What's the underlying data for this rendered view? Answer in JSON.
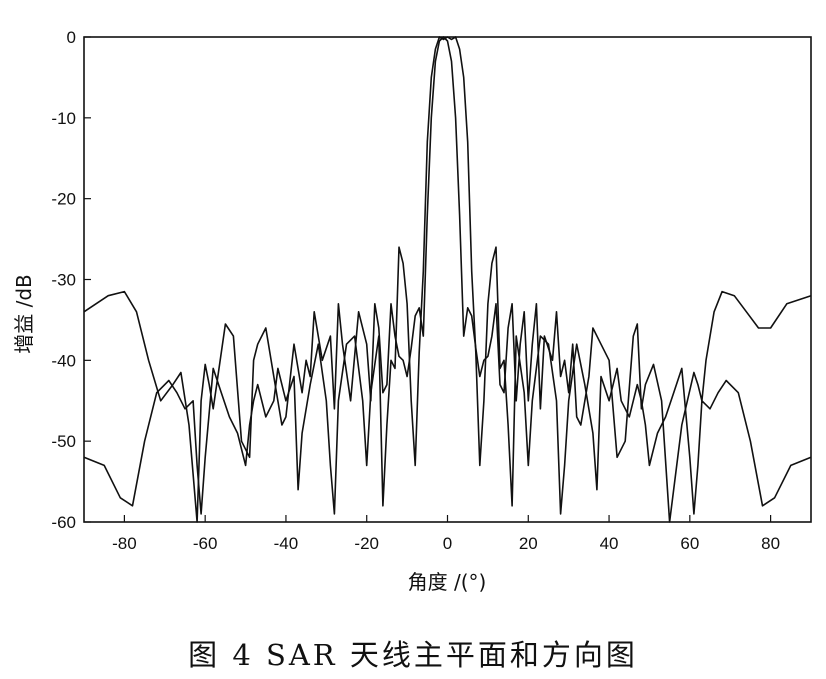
{
  "figure": {
    "caption": "图 4 SAR 天线主平面和方向图"
  },
  "chart_data": {
    "type": "line",
    "xlabel": "角度 /(°)",
    "ylabel": "增益 /dB",
    "xlim": [
      -90,
      90
    ],
    "ylim": [
      -60,
      0
    ],
    "xticks": [
      -80,
      -60,
      -40,
      -20,
      0,
      20,
      40,
      60,
      80
    ],
    "yticks": [
      0,
      -10,
      -20,
      -30,
      -40,
      -50,
      -60
    ],
    "grid": false,
    "series": [
      {
        "x": [
          -90,
          -84,
          -80,
          -77,
          -74,
          -71,
          -68,
          -66,
          -64,
          -62,
          -61,
          -60,
          -59,
          -58,
          -55,
          -53,
          -51,
          -49,
          -48,
          -47,
          -45,
          -43,
          -41,
          -40,
          -38,
          -36,
          -35,
          -34,
          -33,
          -31,
          -29,
          -28,
          -27,
          -26,
          -24,
          -22,
          -20,
          -19,
          -18,
          -17,
          -16,
          -15,
          -14,
          -13,
          -12,
          -11,
          -10,
          -9,
          -8,
          -7,
          -6,
          -5,
          -4,
          -3,
          -2,
          -1,
          0,
          1,
          2,
          3,
          4,
          5,
          6,
          7,
          8,
          9,
          10,
          11,
          12,
          13,
          14,
          15,
          16,
          17,
          18,
          19,
          20,
          21,
          22,
          23,
          24,
          26,
          27,
          28,
          29,
          30,
          31,
          32,
          33,
          35,
          36,
          38,
          40,
          42,
          44,
          46,
          47,
          48,
          49,
          51,
          53,
          55,
          58,
          61,
          62,
          63,
          64,
          66,
          68,
          71,
          74,
          77,
          80,
          84,
          90
        ],
        "values": [
          -34,
          -32,
          -31.5,
          -34,
          -40,
          -45,
          -43,
          -41.5,
          -48,
          -60,
          -45,
          -40.5,
          -43,
          -46,
          -35.5,
          -37,
          -50,
          -52,
          -40,
          -38,
          -36,
          -42,
          -48,
          -47,
          -38,
          -44,
          -40,
          -42,
          -34,
          -40,
          -37,
          -46,
          -33,
          -38,
          -45,
          -34,
          -38,
          -45,
          -33,
          -36,
          -44,
          -43,
          -33,
          -37,
          -39.5,
          -40,
          -42,
          -38.5,
          -34.5,
          -33.5,
          -37,
          -22,
          -10,
          -3,
          -0.5,
          0,
          -0.5,
          -3,
          -10,
          -22,
          -37,
          -33.5,
          -34.5,
          -38.5,
          -42,
          -40,
          -39.5,
          -37,
          -33,
          -43,
          -44,
          -36,
          -33,
          -45,
          -38,
          -34,
          -45,
          -38,
          -33,
          -46,
          -37,
          -40,
          -34,
          -42,
          -40,
          -44,
          -38,
          -47,
          -48,
          -42,
          -36,
          -38,
          -40,
          -52,
          -50,
          -37,
          -35.5,
          -46,
          -43,
          -40.5,
          -45,
          -60,
          -48,
          -41.5,
          -43,
          -45,
          -40,
          -34,
          -31.5,
          -32,
          -34,
          -36,
          -36,
          -33,
          -32
        ]
      },
      {
        "x": [
          -90,
          -85,
          -81,
          -78,
          -75,
          -72,
          -69,
          -67,
          -65,
          -63,
          -62,
          -61,
          -60,
          -58,
          -56,
          -54,
          -52,
          -50,
          -49,
          -48,
          -47,
          -45,
          -43,
          -42,
          -40,
          -38,
          -37,
          -36,
          -34,
          -32,
          -30,
          -29,
          -28,
          -27,
          -25,
          -23,
          -21,
          -20,
          -19,
          -17,
          -16,
          -15,
          -14,
          -13,
          -12,
          -11,
          -10,
          -9,
          -8,
          -7,
          -6,
          -5,
          -4,
          -3,
          -2,
          -1,
          0,
          1,
          2,
          3,
          4,
          5,
          6,
          7,
          8,
          9,
          10,
          11,
          12,
          13,
          14,
          15,
          16,
          17,
          19,
          20,
          21,
          23,
          25,
          27,
          28,
          29,
          30,
          32,
          34,
          36,
          37,
          38,
          40,
          42,
          43,
          45,
          47,
          48,
          49,
          50,
          52,
          54,
          56,
          58,
          60,
          61,
          62,
          63,
          65,
          67,
          69,
          72,
          75,
          78,
          81,
          85,
          90
        ],
        "values": [
          -52,
          -53,
          -57,
          -58,
          -50,
          -44,
          -42.5,
          -44,
          -46,
          -45,
          -53,
          -59,
          -52,
          -41,
          -44,
          -47,
          -49,
          -53,
          -48,
          -45,
          -43,
          -47,
          -45,
          -41,
          -45,
          -42,
          -56,
          -49,
          -43,
          -38,
          -45,
          -53,
          -59,
          -45,
          -38,
          -37,
          -45,
          -53,
          -44,
          -37,
          -58,
          -48,
          -40,
          -41,
          -26,
          -28,
          -33,
          -45,
          -53,
          -39,
          -29,
          -13,
          -5,
          -1.5,
          0,
          -0.3,
          0,
          -0.3,
          0,
          -1.5,
          -5,
          -13,
          -29,
          -39,
          -53,
          -45,
          -33,
          -28,
          -26,
          -41,
          -40,
          -48,
          -58,
          -37,
          -44,
          -53,
          -45,
          -37,
          -38,
          -45,
          -59,
          -53,
          -45,
          -38,
          -43,
          -49,
          -56,
          -42,
          -45,
          -41,
          -45,
          -47,
          -43,
          -45,
          -48,
          -53,
          -49,
          -47,
          -44,
          -41,
          -52,
          -59,
          -53,
          -45,
          -46,
          -44,
          -42.5,
          -44,
          -50,
          -58,
          -57,
          -53,
          -52
        ]
      }
    ]
  }
}
